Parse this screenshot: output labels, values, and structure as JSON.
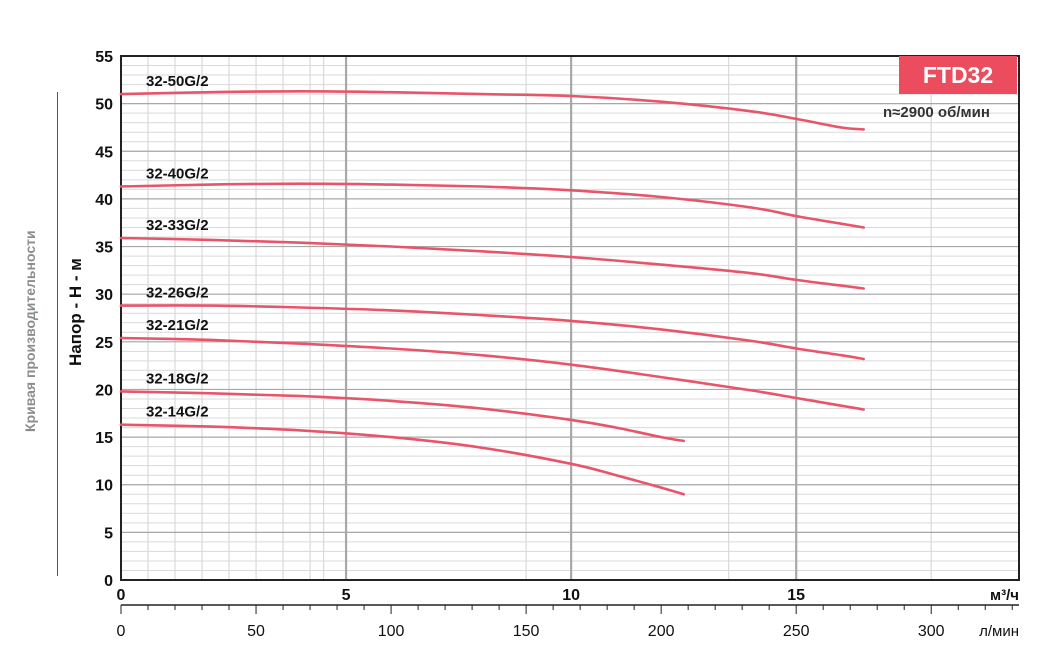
{
  "side_label": "Кривая производительности",
  "badge": "FTD32",
  "speed": "n≈2900 об/мин",
  "colors": {
    "curve": "#e8556b",
    "badge": "#ec4d5e",
    "grid_major": "#a8a8a8",
    "grid_minor": "#d9d9d9"
  },
  "chart_data": {
    "type": "line",
    "title": "",
    "ylabel": "Напор - Н - м",
    "xlabel": "м³/ч",
    "x2label": "л/мин",
    "xlim": [
      0,
      20
    ],
    "ylim": [
      0,
      55
    ],
    "x_ticks": [
      "0",
      "5",
      "10",
      "15"
    ],
    "y_ticks": [
      "0",
      "5",
      "10",
      "15",
      "20",
      "25",
      "30",
      "35",
      "40",
      "45",
      "50",
      "55"
    ],
    "x2_ticks": [
      "0",
      "50",
      "100",
      "150",
      "200",
      "250",
      "300"
    ],
    "grid": true,
    "series": [
      {
        "name": "32-50G/2",
        "x": [
          0,
          2,
          4,
          6,
          8,
          10,
          12,
          14,
          15,
          16,
          16.5
        ],
        "y": [
          51.0,
          51.2,
          51.3,
          51.2,
          51.0,
          50.8,
          50.2,
          49.2,
          48.4,
          47.5,
          47.3
        ]
      },
      {
        "name": "32-40G/2",
        "x": [
          0,
          2,
          4,
          6,
          8,
          10,
          12,
          14,
          15,
          16,
          16.5
        ],
        "y": [
          41.3,
          41.5,
          41.6,
          41.5,
          41.3,
          40.9,
          40.2,
          39.1,
          38.2,
          37.4,
          37.0
        ]
      },
      {
        "name": "32-33G/2",
        "x": [
          0,
          2,
          4,
          6,
          8,
          10,
          12,
          14,
          15,
          16,
          16.5
        ],
        "y": [
          35.9,
          35.7,
          35.4,
          35.0,
          34.5,
          33.9,
          33.1,
          32.2,
          31.5,
          30.9,
          30.6
        ]
      },
      {
        "name": "32-26G/2",
        "x": [
          0,
          2,
          4,
          6,
          8,
          10,
          12,
          14,
          15,
          16,
          16.5
        ],
        "y": [
          28.8,
          28.8,
          28.6,
          28.3,
          27.8,
          27.2,
          26.3,
          25.1,
          24.3,
          23.6,
          23.2
        ]
      },
      {
        "name": "32-21G/2",
        "x": [
          0,
          2,
          4,
          6,
          8,
          10,
          12,
          14,
          15,
          16,
          16.5
        ],
        "y": [
          25.4,
          25.2,
          24.8,
          24.3,
          23.6,
          22.6,
          21.3,
          19.9,
          19.1,
          18.3,
          17.9
        ]
      },
      {
        "name": "32-18G/2",
        "x": [
          0,
          2,
          4,
          6,
          8,
          10,
          11,
          12,
          12.5
        ],
        "y": [
          19.8,
          19.6,
          19.3,
          18.8,
          18.0,
          16.8,
          16.0,
          15.0,
          14.6
        ]
      },
      {
        "name": "32-14G/2",
        "x": [
          0,
          2,
          4,
          6,
          8,
          10,
          11,
          12,
          12.5
        ],
        "y": [
          16.3,
          16.1,
          15.7,
          15.0,
          13.9,
          12.2,
          11.0,
          9.7,
          9.0
        ]
      }
    ]
  }
}
